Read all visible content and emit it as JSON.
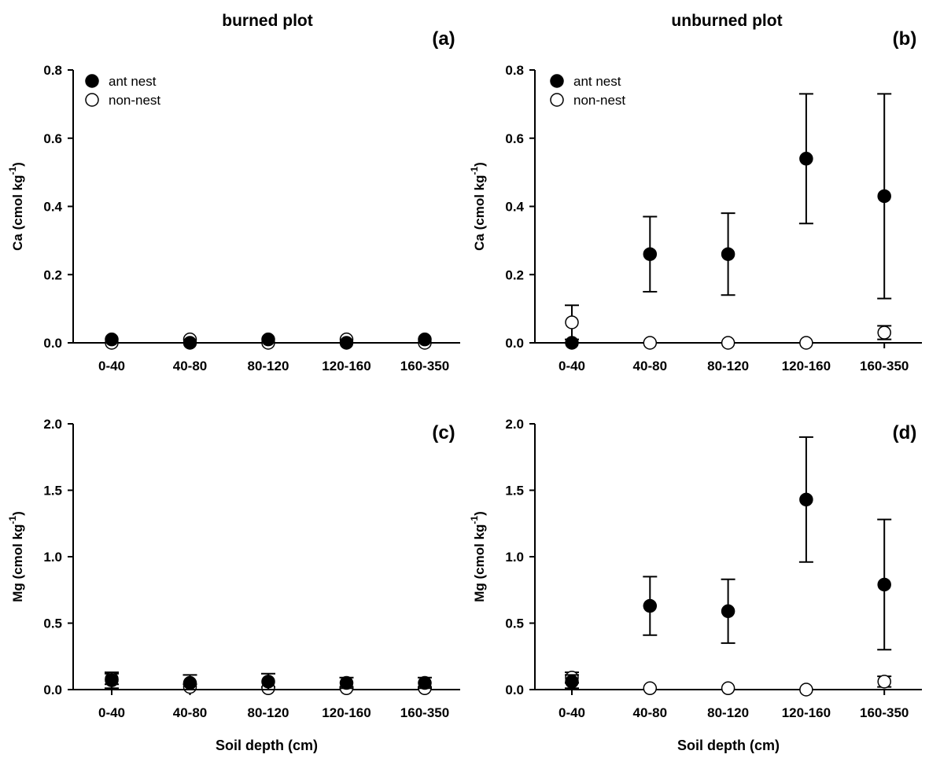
{
  "column_titles": [
    "burned plot",
    "unburned plot"
  ],
  "colors": {
    "ant_nest": "#000000",
    "non_nest": "#ffffff",
    "axis": "#000000"
  },
  "chart_data": [
    {
      "type": "scatter",
      "panel_label": "(a)",
      "ylabel_main": "Ca (cmol kg",
      "ylabel_sup": "-1",
      "ylabel_end": ")",
      "xlabel": "",
      "categories": [
        "0-40",
        "40-80",
        "80-120",
        "120-160",
        "160-350"
      ],
      "ylim": [
        0,
        0.8
      ],
      "yticks": [
        0.0,
        0.2,
        0.4,
        0.6,
        0.8
      ],
      "ytick_labels": [
        "0.0",
        "0.2",
        "0.4",
        "0.6",
        "0.8"
      ],
      "legend": {
        "show": true,
        "position": "top-left",
        "entries": [
          "ant nest",
          "non-nest"
        ]
      },
      "series": [
        {
          "name": "ant nest",
          "marker": "filled-circle",
          "values": [
            0.01,
            0.0,
            0.01,
            0.0,
            0.01
          ],
          "err": [
            0,
            0,
            0,
            0,
            0
          ]
        },
        {
          "name": "non-nest",
          "marker": "open-circle",
          "values": [
            0.0,
            0.01,
            0.0,
            0.01,
            0.0
          ],
          "err": [
            0,
            0,
            0,
            0,
            0
          ]
        }
      ]
    },
    {
      "type": "scatter",
      "panel_label": "(b)",
      "ylabel_main": "Ca (cmol kg",
      "ylabel_sup": "-1",
      "ylabel_end": ")",
      "xlabel": "",
      "categories": [
        "0-40",
        "40-80",
        "80-120",
        "120-160",
        "160-350"
      ],
      "ylim": [
        0,
        0.8
      ],
      "yticks": [
        0.0,
        0.2,
        0.4,
        0.6,
        0.8
      ],
      "ytick_labels": [
        "0.0",
        "0.2",
        "0.4",
        "0.6",
        "0.8"
      ],
      "legend": {
        "show": true,
        "position": "top-left",
        "entries": [
          "ant nest",
          "non-nest"
        ]
      },
      "series": [
        {
          "name": "ant nest",
          "marker": "filled-circle",
          "values": [
            0.0,
            0.26,
            0.26,
            0.54,
            0.43
          ],
          "err": [
            0,
            0.11,
            0.12,
            0.19,
            0.3
          ]
        },
        {
          "name": "non-nest",
          "marker": "open-circle",
          "values": [
            0.06,
            0.0,
            0.0,
            0.0,
            0.03
          ],
          "err": [
            0.05,
            0,
            0,
            0,
            0.02
          ]
        }
      ]
    },
    {
      "type": "scatter",
      "panel_label": "(c)",
      "ylabel_main": "Mg (cmol kg",
      "ylabel_sup": "-1",
      "ylabel_end": ")",
      "xlabel": "Soil depth (cm)",
      "categories": [
        "0-40",
        "40-80",
        "80-120",
        "120-160",
        "160-350"
      ],
      "ylim": [
        0,
        2.0
      ],
      "yticks": [
        0.0,
        0.5,
        1.0,
        1.5,
        2.0
      ],
      "ytick_labels": [
        "0.0",
        "0.5",
        "1.0",
        "1.5",
        "2.0"
      ],
      "legend": {
        "show": false,
        "position": "top-left",
        "entries": []
      },
      "series": [
        {
          "name": "ant nest",
          "marker": "filled-circle",
          "values": [
            0.07,
            0.05,
            0.06,
            0.05,
            0.05
          ],
          "err": [
            0.06,
            0.06,
            0.06,
            0.04,
            0.04
          ]
        },
        {
          "name": "non-nest",
          "marker": "open-circle",
          "values": [
            0.08,
            0.02,
            0.01,
            0.01,
            0.01
          ],
          "err": [
            0.04,
            0.02,
            0.01,
            0.01,
            0.01
          ]
        }
      ]
    },
    {
      "type": "scatter",
      "panel_label": "(d)",
      "ylabel_main": "Mg (cmol kg",
      "ylabel_sup": "-1",
      "ylabel_end": ")",
      "xlabel": "Soil depth (cm)",
      "categories": [
        "0-40",
        "40-80",
        "80-120",
        "120-160",
        "160-350"
      ],
      "ylim": [
        0,
        2.0
      ],
      "yticks": [
        0.0,
        0.5,
        1.0,
        1.5,
        2.0
      ],
      "ytick_labels": [
        "0.0",
        "0.5",
        "1.0",
        "1.5",
        "2.0"
      ],
      "legend": {
        "show": false,
        "position": "top-left",
        "entries": []
      },
      "series": [
        {
          "name": "ant nest",
          "marker": "filled-circle",
          "values": [
            0.06,
            0.63,
            0.59,
            1.43,
            0.79
          ],
          "err": [
            0.05,
            0.22,
            0.24,
            0.47,
            0.49
          ]
        },
        {
          "name": "non-nest",
          "marker": "open-circle",
          "values": [
            0.09,
            0.01,
            0.01,
            0.0,
            0.06
          ],
          "err": [
            0.04,
            0,
            0,
            0,
            0.04
          ]
        }
      ]
    }
  ]
}
